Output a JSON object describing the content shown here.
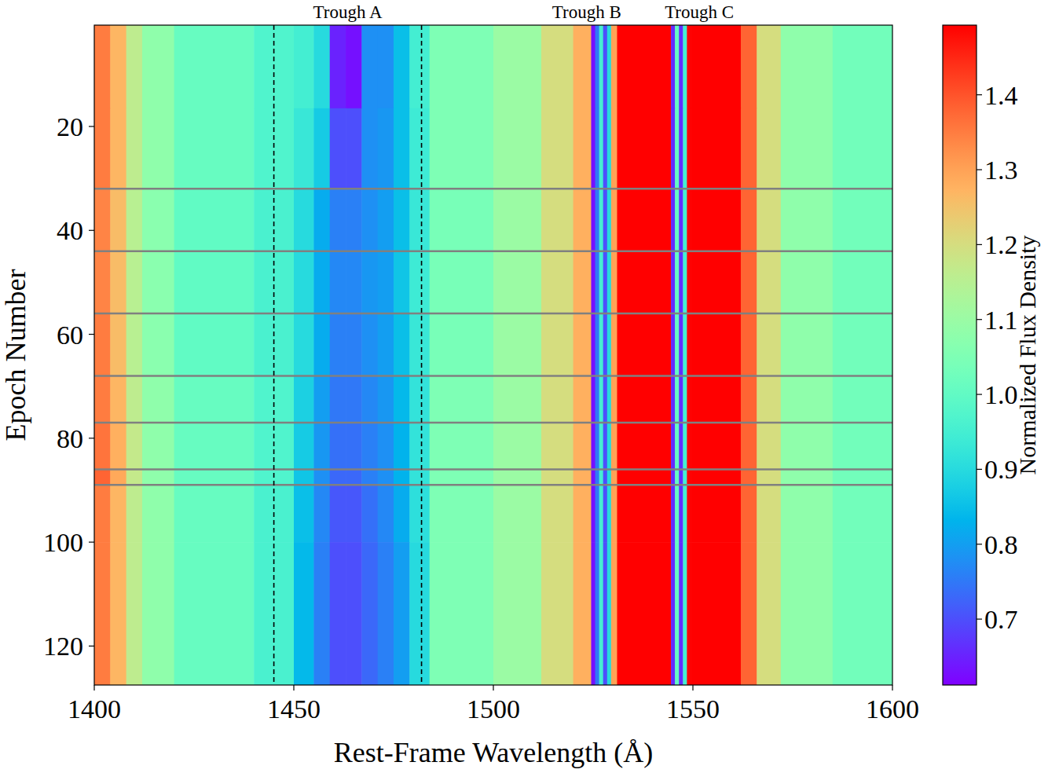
{
  "chart_data": {
    "type": "heatmap",
    "x_label": "Rest-Frame Wavelength (Å)",
    "y_label": "Epoch Number",
    "xlim": [
      1400,
      1600
    ],
    "xticks": [
      1400,
      1450,
      1500,
      1550,
      1600
    ],
    "ylim": [
      127.5,
      0.5
    ],
    "yticks": [
      20,
      40,
      60,
      80,
      100,
      120
    ],
    "x_edges": [
      1400,
      1404,
      1408,
      1412,
      1420,
      1440,
      1450,
      1455,
      1459,
      1463,
      1467,
      1471,
      1475,
      1479,
      1484,
      1500,
      1512,
      1520,
      1524.5,
      1525.5,
      1526.5,
      1527.5,
      1528.5,
      1529.5,
      1531,
      1544.5,
      1545.5,
      1546.5,
      1547.5,
      1548.5,
      1549.5,
      1562,
      1566,
      1572,
      1585,
      1600
    ],
    "y_edges": [
      0.5,
      16.5,
      32,
      44,
      56,
      68,
      77,
      86,
      89,
      100,
      127.5
    ],
    "cells": [
      [
        1.35,
        1.27,
        1.16,
        1.08,
        1.01,
        0.97,
        0.95,
        0.9,
        0.65,
        0.63,
        0.78,
        0.78,
        0.85,
        0.95,
        1.05,
        1.1,
        1.2,
        1.28,
        0.63,
        0.75,
        0.95,
        0.7,
        0.9,
        1.3,
        1.6,
        0.66,
        1.0,
        0.66,
        0.95,
        1.5,
        1.6,
        1.38,
        1.2,
        1.08,
        1.03
      ],
      [
        1.35,
        1.27,
        1.16,
        1.08,
        1.01,
        0.97,
        0.93,
        0.87,
        0.7,
        0.7,
        0.78,
        0.79,
        0.85,
        0.94,
        1.05,
        1.1,
        1.2,
        1.28,
        0.63,
        0.75,
        0.95,
        0.7,
        0.9,
        1.3,
        1.6,
        0.66,
        1.0,
        0.66,
        0.95,
        1.5,
        1.6,
        1.38,
        1.2,
        1.08,
        1.03
      ],
      [
        1.34,
        1.26,
        1.15,
        1.07,
        1.0,
        0.96,
        0.9,
        0.82,
        0.76,
        0.76,
        0.78,
        0.8,
        0.85,
        0.93,
        1.04,
        1.1,
        1.2,
        1.28,
        0.63,
        0.75,
        0.95,
        0.7,
        0.9,
        1.3,
        1.6,
        0.66,
        1.0,
        0.66,
        0.95,
        1.5,
        1.6,
        1.38,
        1.2,
        1.08,
        1.03
      ],
      [
        1.34,
        1.26,
        1.15,
        1.07,
        1.0,
        0.96,
        0.9,
        0.82,
        0.77,
        0.77,
        0.79,
        0.8,
        0.86,
        0.94,
        1.04,
        1.1,
        1.2,
        1.28,
        0.63,
        0.75,
        0.95,
        0.7,
        0.9,
        1.3,
        1.6,
        0.66,
        1.0,
        0.66,
        0.95,
        1.5,
        1.6,
        1.38,
        1.2,
        1.08,
        1.03
      ],
      [
        1.35,
        1.26,
        1.15,
        1.07,
        1.0,
        0.96,
        0.9,
        0.82,
        0.76,
        0.76,
        0.78,
        0.8,
        0.85,
        0.93,
        1.04,
        1.1,
        1.2,
        1.28,
        0.63,
        0.75,
        0.95,
        0.7,
        0.9,
        1.3,
        1.6,
        0.66,
        1.0,
        0.66,
        0.95,
        1.5,
        1.6,
        1.38,
        1.2,
        1.08,
        1.03
      ],
      [
        1.35,
        1.27,
        1.16,
        1.08,
        1.01,
        0.97,
        0.88,
        0.8,
        0.75,
        0.75,
        0.77,
        0.79,
        0.84,
        0.92,
        1.05,
        1.1,
        1.2,
        1.28,
        0.63,
        0.75,
        0.95,
        0.7,
        0.9,
        1.3,
        1.6,
        0.66,
        1.0,
        0.66,
        0.95,
        1.5,
        1.6,
        1.38,
        1.2,
        1.08,
        1.03
      ],
      [
        1.36,
        1.28,
        1.17,
        1.08,
        1.01,
        0.97,
        0.87,
        0.79,
        0.74,
        0.74,
        0.76,
        0.78,
        0.83,
        0.92,
        1.05,
        1.1,
        1.2,
        1.28,
        0.63,
        0.75,
        0.95,
        0.7,
        0.9,
        1.3,
        1.6,
        0.66,
        1.0,
        0.66,
        0.95,
        1.5,
        1.6,
        1.38,
        1.2,
        1.08,
        1.03
      ],
      [
        1.38,
        1.29,
        1.17,
        1.08,
        1.01,
        0.97,
        0.86,
        0.78,
        0.73,
        0.73,
        0.76,
        0.78,
        0.83,
        0.92,
        1.05,
        1.1,
        1.2,
        1.28,
        0.63,
        0.75,
        0.95,
        0.7,
        0.9,
        1.3,
        1.6,
        0.66,
        1.0,
        0.66,
        0.95,
        1.5,
        1.6,
        1.38,
        1.2,
        1.08,
        1.03
      ],
      [
        1.35,
        1.27,
        1.16,
        1.08,
        1.01,
        0.96,
        0.85,
        0.77,
        0.71,
        0.71,
        0.74,
        0.77,
        0.82,
        0.91,
        1.05,
        1.1,
        1.2,
        1.28,
        0.63,
        0.75,
        0.95,
        0.7,
        0.9,
        1.3,
        1.6,
        0.66,
        1.0,
        0.66,
        0.95,
        1.5,
        1.6,
        1.38,
        1.2,
        1.08,
        1.03
      ],
      [
        1.35,
        1.27,
        1.16,
        1.08,
        1.01,
        0.96,
        0.84,
        0.76,
        0.7,
        0.7,
        0.73,
        0.76,
        0.8,
        0.9,
        1.05,
        1.1,
        1.2,
        1.28,
        0.63,
        0.75,
        0.95,
        0.7,
        0.9,
        1.3,
        1.6,
        0.66,
        1.0,
        0.66,
        0.95,
        1.5,
        1.6,
        1.38,
        1.2,
        1.08,
        1.03
      ]
    ],
    "colorbar": {
      "label": "Normalized Flux Density",
      "range": [
        0.612,
        1.493
      ],
      "ticks": [
        0.7,
        0.8,
        0.9,
        {
          "value": 1,
          "label": "1.0"
        },
        1.1,
        1.2,
        1.3,
        1.4
      ]
    },
    "epoch_lines": [
      32,
      44,
      56,
      68,
      77,
      86,
      89
    ],
    "wavelength_lines": [
      1445,
      1482
    ],
    "annotations": [
      {
        "text": "Trough A",
        "x": 1463.5
      },
      {
        "text": "Trough B",
        "x": 1523.4
      },
      {
        "text": "Trough C",
        "x": 1551.6
      }
    ]
  }
}
